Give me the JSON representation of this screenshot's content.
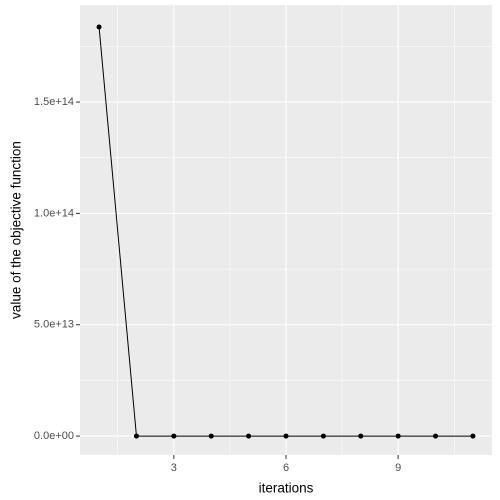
{
  "chart_data": {
    "type": "line",
    "x_label": "iterations",
    "y_label": "value of the objective function",
    "x": [
      1,
      2,
      3,
      4,
      5,
      6,
      7,
      8,
      9,
      10,
      11
    ],
    "series": [
      {
        "color": "#000000",
        "values": [
          183700000000000,
          0,
          0,
          0,
          0,
          0,
          0,
          0,
          0,
          0,
          0
        ]
      }
    ],
    "xlim": [
      0.49,
      11.51
    ],
    "ylim": [
      -8500000000000,
      193600000000000
    ],
    "xticks": [
      3,
      6,
      9
    ],
    "yticks": [
      {
        "value": 0,
        "label": "0.0e+00"
      },
      {
        "value": 50000000000000,
        "label": "5.0e+13"
      },
      {
        "value": 100000000000000,
        "label": "1.0e+14"
      },
      {
        "value": 150000000000000,
        "label": "1.5e+14"
      }
    ],
    "x_minor_ticks": [
      1.5,
      4.5,
      7.5,
      10.5
    ],
    "y_minor_ticks": [
      25000000000000,
      75000000000000,
      125000000000000,
      175000000000000
    ],
    "grid": true
  }
}
